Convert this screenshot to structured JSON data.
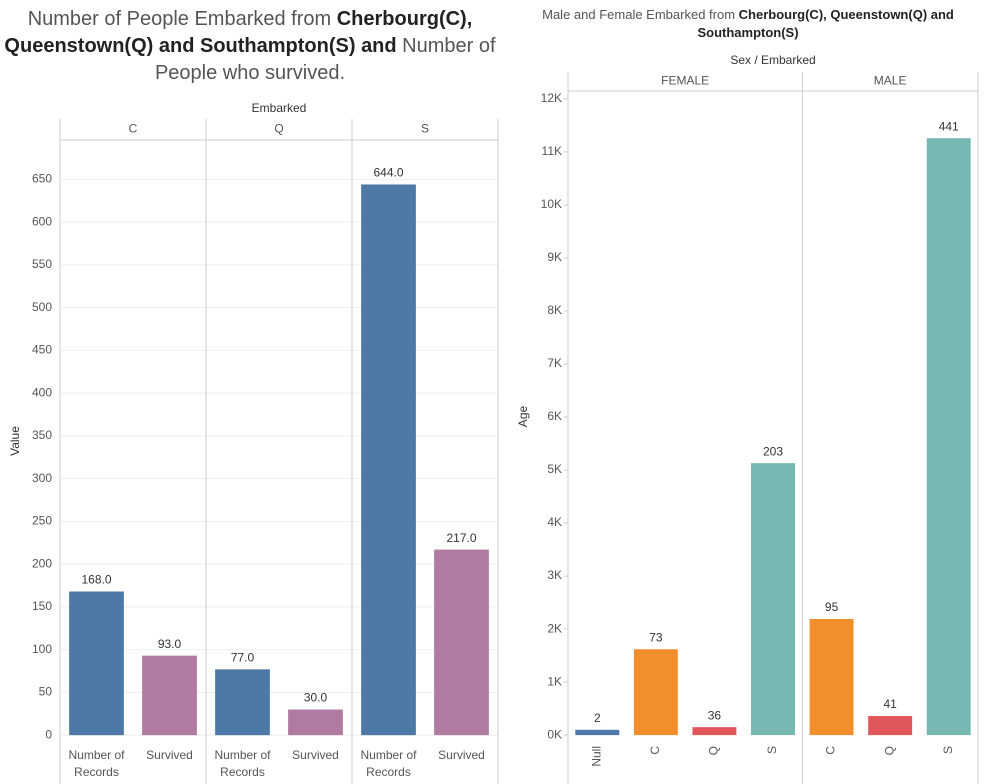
{
  "chart_data": [
    {
      "type": "bar",
      "title_parts": [
        "Number of People Embarked from ",
        "Cherbourg(C), Queenstown(Q) and Southampton(S) and",
        " Number of People who survived."
      ],
      "column_header": "Embarked",
      "y_label": "Value",
      "ylim": [
        -8,
        696
      ],
      "yticks": [
        0,
        50,
        100,
        150,
        200,
        250,
        300,
        350,
        400,
        450,
        500,
        550,
        600,
        650
      ],
      "grid": true,
      "facets": [
        {
          "name": "C",
          "categories": [
            "Number of Records",
            "Survived"
          ],
          "values": [
            168,
            93
          ],
          "value_labels": [
            "168.0",
            "93.0"
          ],
          "colors": [
            "#4e79a7",
            "#b07aa1"
          ]
        },
        {
          "name": "Q",
          "categories": [
            "Number of Records",
            "Survived"
          ],
          "values": [
            77,
            30
          ],
          "value_labels": [
            "77.0",
            "30.0"
          ],
          "colors": [
            "#4e79a7",
            "#b07aa1"
          ]
        },
        {
          "name": "S",
          "categories": [
            "Number of Records",
            "Survived"
          ],
          "values": [
            644,
            217
          ],
          "value_labels": [
            "644.0",
            "217.0"
          ],
          "colors": [
            "#4e79a7",
            "#b07aa1"
          ]
        }
      ]
    },
    {
      "type": "bar",
      "title_parts": [
        "Male and Female Embarked from ",
        "Cherbourg(C), Queenstown(Q) and Southampton(S)"
      ],
      "column_header": "Sex / Embarked",
      "y_label": "Age",
      "ylim": [
        -130,
        12150
      ],
      "yticks": [
        {
          "value": 0,
          "label": "0K"
        },
        {
          "value": 1000,
          "label": "1K"
        },
        {
          "value": 2000,
          "label": "2K"
        },
        {
          "value": 3000,
          "label": "3K"
        },
        {
          "value": 4000,
          "label": "4K"
        },
        {
          "value": 5000,
          "label": "5K"
        },
        {
          "value": 6000,
          "label": "6K"
        },
        {
          "value": 7000,
          "label": "7K"
        },
        {
          "value": 8000,
          "label": "8K"
        },
        {
          "value": 9000,
          "label": "9K"
        },
        {
          "value": 10000,
          "label": "10K"
        },
        {
          "value": 11000,
          "label": "11K"
        },
        {
          "value": 12000,
          "label": "12K"
        }
      ],
      "grid": false,
      "facets": [
        {
          "name": "FEMALE",
          "categories": [
            "Null",
            "C",
            "Q",
            "S"
          ],
          "values": [
            100,
            1620,
            150,
            5130
          ],
          "record_counts": [
            2,
            73,
            36,
            203
          ],
          "colors": [
            "#4e79a7",
            "#f28e2b",
            "#e15759",
            "#76b7b2"
          ]
        },
        {
          "name": "MALE",
          "categories": [
            "C",
            "Q",
            "S"
          ],
          "values": [
            2190,
            360,
            11260
          ],
          "record_counts": [
            95,
            41,
            441
          ],
          "colors": [
            "#f28e2b",
            "#e15759",
            "#76b7b2"
          ]
        }
      ]
    }
  ]
}
